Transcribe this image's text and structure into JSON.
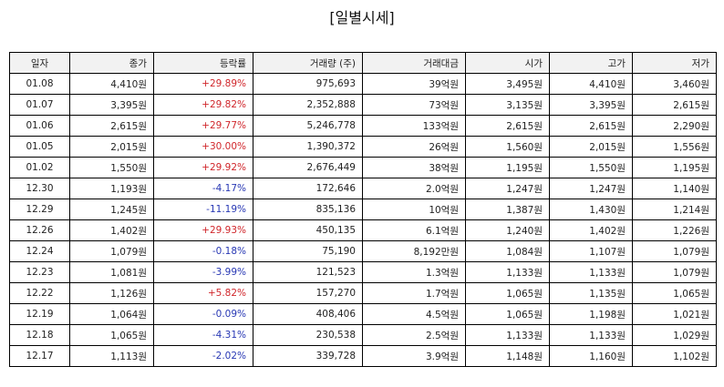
{
  "title": "[일별시세]",
  "colors": {
    "up": "#d0262b",
    "down": "#2838b4"
  },
  "columns": [
    "일자",
    "종가",
    "등락률",
    "거래량 (주)",
    "거래대금",
    "시가",
    "고가",
    "저가"
  ],
  "rows": [
    {
      "date": "01.08",
      "close": "4,410원",
      "change": "+29.89%",
      "dir": "up",
      "volume": "975,693",
      "amount": "39억원",
      "open": "3,495원",
      "high": "4,410원",
      "low": "3,460원"
    },
    {
      "date": "01.07",
      "close": "3,395원",
      "change": "+29.82%",
      "dir": "up",
      "volume": "2,352,888",
      "amount": "73억원",
      "open": "3,135원",
      "high": "3,395원",
      "low": "2,615원"
    },
    {
      "date": "01.06",
      "close": "2,615원",
      "change": "+29.77%",
      "dir": "up",
      "volume": "5,246,778",
      "amount": "133억원",
      "open": "2,615원",
      "high": "2,615원",
      "low": "2,290원"
    },
    {
      "date": "01.05",
      "close": "2,015원",
      "change": "+30.00%",
      "dir": "up",
      "volume": "1,390,372",
      "amount": "26억원",
      "open": "1,560원",
      "high": "2,015원",
      "low": "1,556원"
    },
    {
      "date": "01.02",
      "close": "1,550원",
      "change": "+29.92%",
      "dir": "up",
      "volume": "2,676,449",
      "amount": "38억원",
      "open": "1,195원",
      "high": "1,550원",
      "low": "1,195원"
    },
    {
      "date": "12.30",
      "close": "1,193원",
      "change": "-4.17%",
      "dir": "down",
      "volume": "172,646",
      "amount": "2.0억원",
      "open": "1,247원",
      "high": "1,247원",
      "low": "1,140원"
    },
    {
      "date": "12.29",
      "close": "1,245원",
      "change": "-11.19%",
      "dir": "down",
      "volume": "835,136",
      "amount": "10억원",
      "open": "1,387원",
      "high": "1,430원",
      "low": "1,214원"
    },
    {
      "date": "12.26",
      "close": "1,402원",
      "change": "+29.93%",
      "dir": "up",
      "volume": "450,135",
      "amount": "6.1억원",
      "open": "1,240원",
      "high": "1,402원",
      "low": "1,226원"
    },
    {
      "date": "12.24",
      "close": "1,079원",
      "change": "-0.18%",
      "dir": "down",
      "volume": "75,190",
      "amount": "8,192만원",
      "open": "1,084원",
      "high": "1,107원",
      "low": "1,079원"
    },
    {
      "date": "12.23",
      "close": "1,081원",
      "change": "-3.99%",
      "dir": "down",
      "volume": "121,523",
      "amount": "1.3억원",
      "open": "1,133원",
      "high": "1,133원",
      "low": "1,079원"
    },
    {
      "date": "12.22",
      "close": "1,126원",
      "change": "+5.82%",
      "dir": "up",
      "volume": "157,270",
      "amount": "1.7억원",
      "open": "1,065원",
      "high": "1,135원",
      "low": "1,065원"
    },
    {
      "date": "12.19",
      "close": "1,064원",
      "change": "-0.09%",
      "dir": "down",
      "volume": "408,406",
      "amount": "4.5억원",
      "open": "1,065원",
      "high": "1,198원",
      "low": "1,021원"
    },
    {
      "date": "12.18",
      "close": "1,065원",
      "change": "-4.31%",
      "dir": "down",
      "volume": "230,538",
      "amount": "2.5억원",
      "open": "1,133원",
      "high": "1,133원",
      "low": "1,029원"
    },
    {
      "date": "12.17",
      "close": "1,113원",
      "change": "-2.02%",
      "dir": "down",
      "volume": "339,728",
      "amount": "3.9억원",
      "open": "1,148원",
      "high": "1,160원",
      "low": "1,102원"
    }
  ]
}
